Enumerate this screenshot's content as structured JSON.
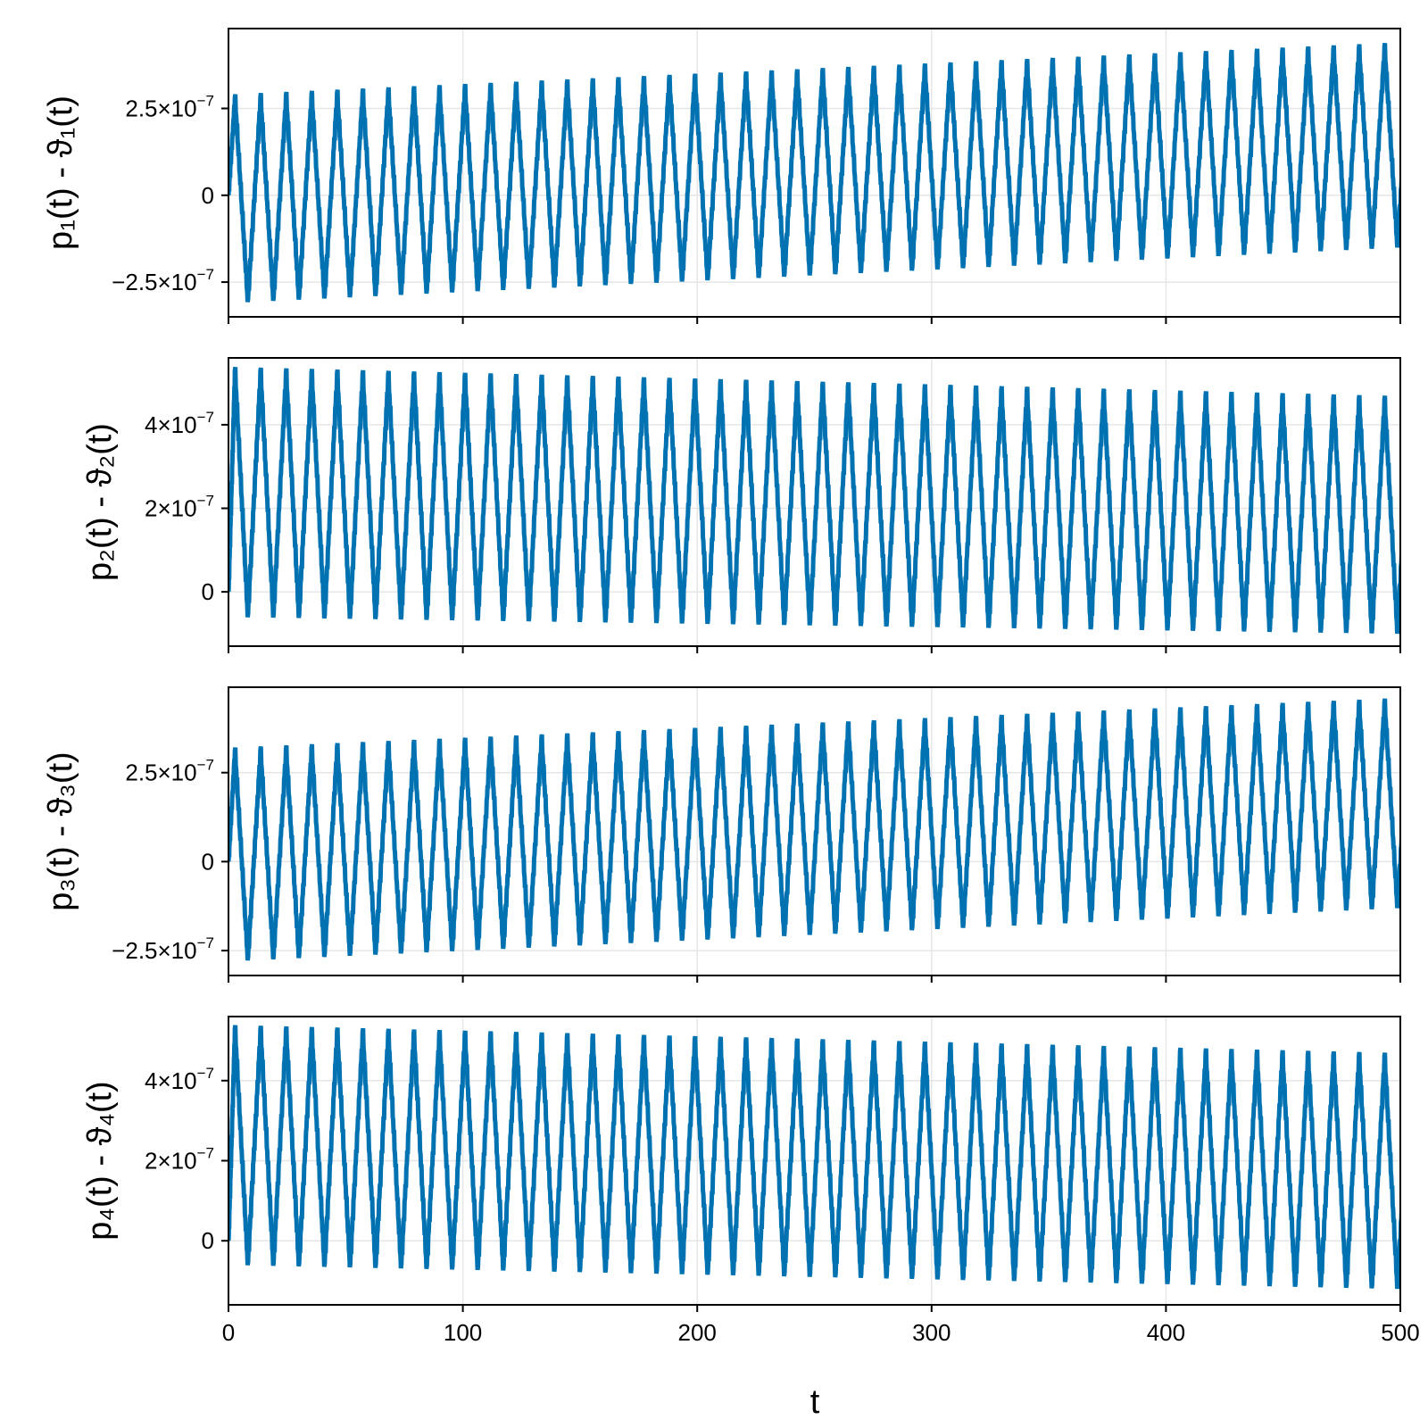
{
  "figure": {
    "series_color": "#0072b2",
    "x_axis_label": "t",
    "x_ticks": [
      0,
      100,
      200,
      300,
      400,
      500
    ],
    "x_tick_labels": [
      "0",
      "100",
      "200",
      "300",
      "400",
      "500"
    ]
  },
  "chart_data": [
    {
      "type": "line",
      "ylabel": "p₁(t) - ϑ₁(t)",
      "xlim": [
        0,
        500
      ],
      "ylim": [
        -3.5e-07,
        4.8e-07
      ],
      "y_ticks": [
        -2.5e-07,
        0,
        2.5e-07
      ],
      "y_tick_labels": [
        {
          "m": "−2.5×10",
          "e": "−7"
        },
        {
          "m": "0",
          "e": ""
        },
        {
          "m": "2.5×10",
          "e": "−7"
        }
      ],
      "grid": true,
      "series": [
        {
          "period": 10.9,
          "start": [
            0,
            0
          ],
          "max_envelope": [
            [
              0,
              2.8e-07
            ],
            [
              500,
              4.3e-07
            ]
          ],
          "min_envelope": [
            [
              0,
              -3.1e-07
            ],
            [
              500,
              -1.5e-07
            ]
          ]
        }
      ]
    },
    {
      "type": "line",
      "ylabel": "p₂(t) - ϑ₂(t)",
      "xlim": [
        0,
        500
      ],
      "ylim": [
        -1.3e-07,
        5.6e-07
      ],
      "y_ticks": [
        0,
        2e-07,
        4e-07
      ],
      "y_tick_labels": [
        {
          "m": "0",
          "e": ""
        },
        {
          "m": "2×10",
          "e": "−7"
        },
        {
          "m": "4×10",
          "e": "−7"
        }
      ],
      "grid": true,
      "series": [
        {
          "period": 10.9,
          "start": [
            0,
            0
          ],
          "max_envelope": [
            [
              0,
              5.3e-07
            ],
            [
              500,
              4.6e-07
            ]
          ],
          "min_envelope": [
            [
              0,
              -6e-08
            ],
            [
              500,
              -1e-07
            ]
          ]
        }
      ]
    },
    {
      "type": "line",
      "ylabel": "p₃(t) - ϑ₃(t)",
      "xlim": [
        0,
        500
      ],
      "ylim": [
        -3.2e-07,
        4.9e-07
      ],
      "y_ticks": [
        -2.5e-07,
        0,
        2.5e-07
      ],
      "y_tick_labels": [
        {
          "m": "−2.5×10",
          "e": "−7"
        },
        {
          "m": "0",
          "e": ""
        },
        {
          "m": "2.5×10",
          "e": "−7"
        }
      ],
      "grid": true,
      "series": [
        {
          "period": 10.9,
          "start": [
            0,
            0
          ],
          "max_envelope": [
            [
              0,
              3.1e-07
            ],
            [
              500,
              4.5e-07
            ]
          ],
          "min_envelope": [
            [
              0,
              -2.8e-07
            ],
            [
              500,
              -1.3e-07
            ]
          ]
        }
      ]
    },
    {
      "type": "line",
      "ylabel": "p₄(t) - ϑ₄(t)",
      "xlim": [
        0,
        500
      ],
      "ylim": [
        -1.6e-07,
        5.6e-07
      ],
      "y_ticks": [
        0,
        2e-07,
        4e-07
      ],
      "y_tick_labels": [
        {
          "m": "0",
          "e": ""
        },
        {
          "m": "2×10",
          "e": "−7"
        },
        {
          "m": "4×10",
          "e": "−7"
        }
      ],
      "grid": true,
      "series": [
        {
          "period": 10.9,
          "start": [
            0,
            0
          ],
          "max_envelope": [
            [
              0,
              5.3e-07
            ],
            [
              500,
              4.6e-07
            ]
          ],
          "min_envelope": [
            [
              0,
              -6e-08
            ],
            [
              500,
              -1.2e-07
            ]
          ]
        }
      ]
    }
  ]
}
